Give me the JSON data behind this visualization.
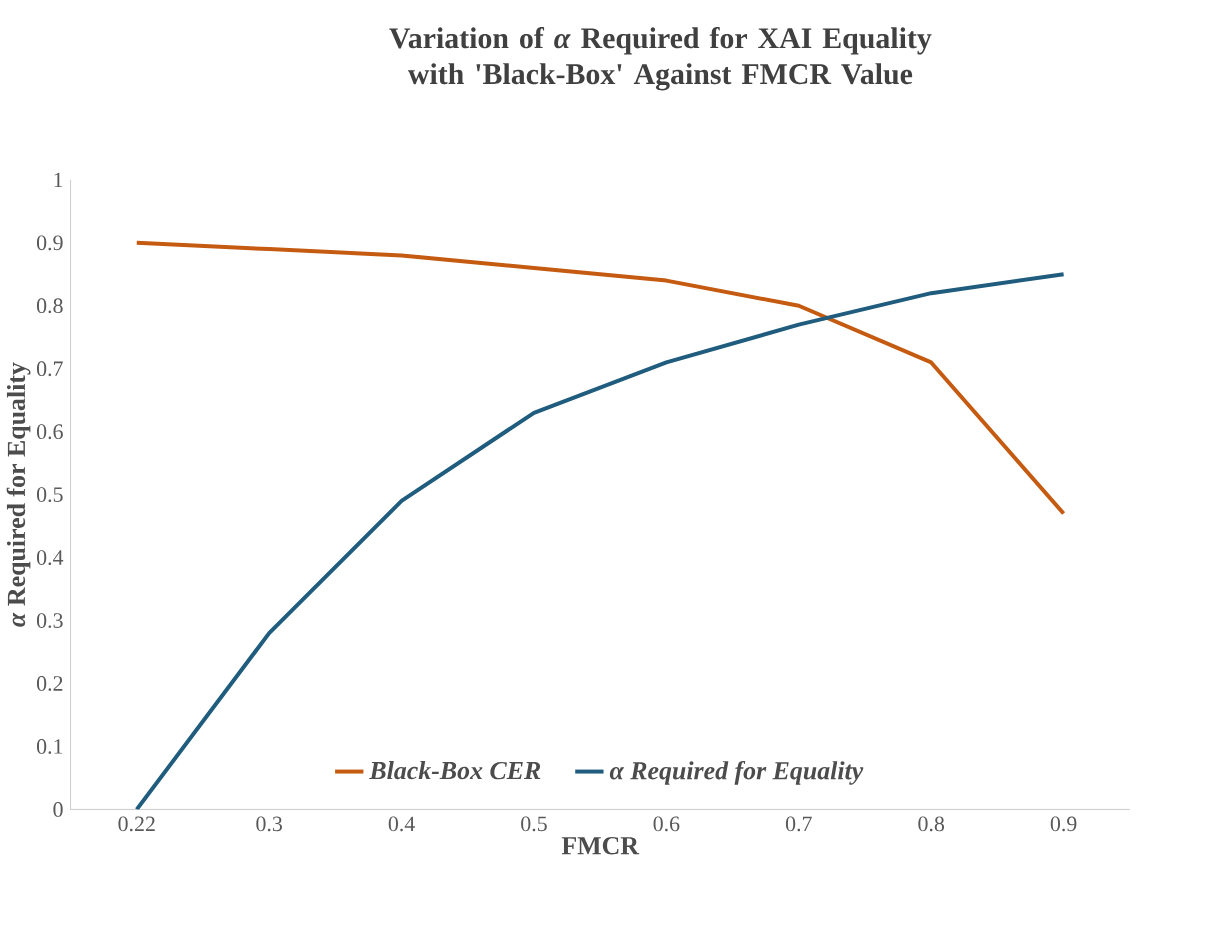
{
  "chart_data": {
    "type": "line",
    "title": "Variation of *α* Required for XAI Equality with 'Black-Box' Against FMCR Value",
    "xlabel": "FMCR",
    "ylabel": "*α* Required for Equality",
    "categories": [
      "0.22",
      "0.3",
      "0.4",
      "0.5",
      "0.6",
      "0.7",
      "0.8",
      "0.9"
    ],
    "series": [
      {
        "name": "Black-Box CER",
        "color": "#c55a11",
        "values": [
          0.9,
          0.89,
          0.88,
          0.86,
          0.84,
          0.8,
          0.71,
          0.47
        ]
      },
      {
        "name": "α Required for Equality",
        "color": "#1f5c7e",
        "values": [
          0,
          0.28,
          0.49,
          0.63,
          0.71,
          0.77,
          0.82,
          0.85
        ]
      }
    ],
    "ylim": [
      0,
      1
    ],
    "yticks": [
      0,
      0.1,
      0.2,
      0.3,
      0.4,
      0.5,
      0.6,
      0.7,
      0.8,
      0.9,
      1
    ],
    "grid": false,
    "legend": "bottom",
    "line_style": "solid"
  }
}
